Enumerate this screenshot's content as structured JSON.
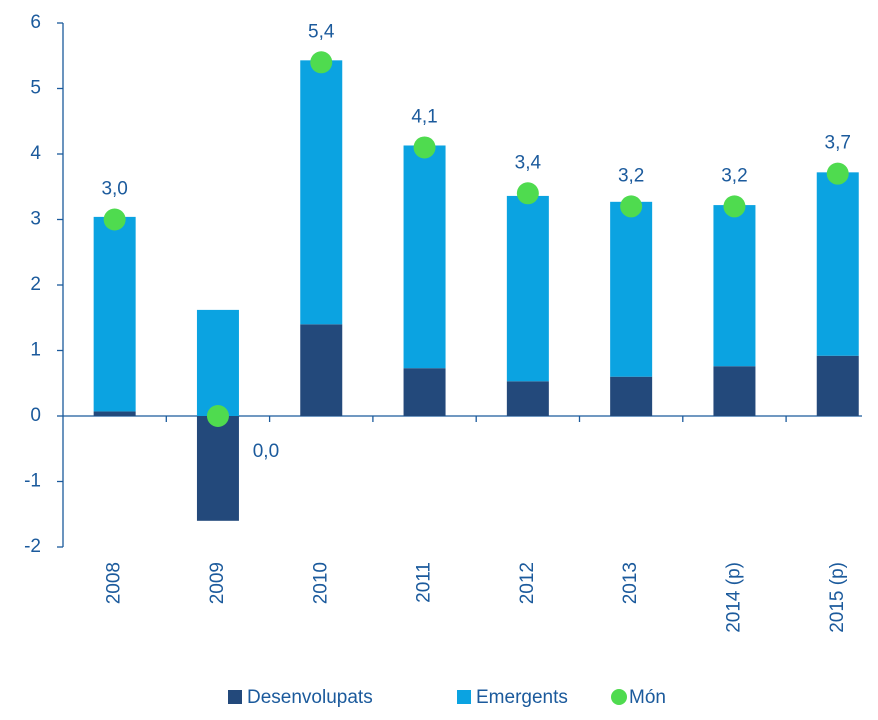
{
  "chart_data": {
    "type": "bar",
    "stacked": true,
    "categories": [
      "2008",
      "2009",
      "2010",
      "2011",
      "2012",
      "2013",
      "2014 (p)",
      "2015 (p)"
    ],
    "series": [
      {
        "name": "Desenvolupats",
        "color": "#23497b",
        "values": [
          0.07,
          -1.6,
          1.4,
          0.73,
          0.53,
          0.6,
          0.76,
          0.92
        ]
      },
      {
        "name": "Emergents",
        "color": "#0ba3e1",
        "values": [
          2.97,
          1.62,
          4.03,
          3.4,
          2.83,
          2.67,
          2.46,
          2.8
        ]
      },
      {
        "name": "Món",
        "type": "scatter",
        "color": "#4fdb4f",
        "values": [
          3.0,
          0.0,
          5.4,
          4.1,
          3.4,
          3.2,
          3.2,
          3.7
        ],
        "value_labels": [
          "3,0",
          "0,0",
          "5,4",
          "4,1",
          "3,4",
          "3,2",
          "3,2",
          "3,7"
        ]
      }
    ],
    "ylim": [
      -2,
      6
    ],
    "yticks": [
      -2,
      -1,
      0,
      1,
      2,
      3,
      4,
      5,
      6
    ],
    "legend": "bottom"
  }
}
